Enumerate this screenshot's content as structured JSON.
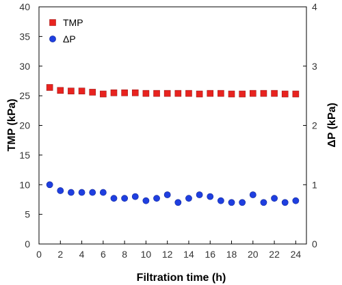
{
  "chart_data": {
    "type": "scatter",
    "xlabel": "Filtration time (h)",
    "ylabel_left": "TMP (kPa)",
    "ylabel_right": "ΔP (kPa)",
    "xlim": [
      0,
      25
    ],
    "ylim_left": [
      0,
      40
    ],
    "ylim_right": [
      0,
      4
    ],
    "x_ticks": [
      0,
      2,
      4,
      6,
      8,
      10,
      12,
      14,
      16,
      18,
      20,
      22,
      24
    ],
    "y_ticks_left": [
      0,
      5,
      10,
      15,
      20,
      25,
      30,
      35,
      40
    ],
    "y_ticks_right": [
      0,
      1,
      2,
      3,
      4
    ],
    "grid": false,
    "legend_position": "top-left",
    "series": [
      {
        "name": "TMP",
        "axis": "left",
        "marker": "square",
        "color": "#e8231f",
        "x": [
          1,
          2,
          3,
          4,
          5,
          6,
          7,
          8,
          9,
          10,
          11,
          12,
          13,
          14,
          15,
          16,
          17,
          18,
          19,
          20,
          21,
          22,
          23,
          24
        ],
        "y": [
          26.4,
          25.9,
          25.8,
          25.8,
          25.6,
          25.3,
          25.5,
          25.5,
          25.5,
          25.4,
          25.4,
          25.4,
          25.4,
          25.4,
          25.3,
          25.4,
          25.4,
          25.3,
          25.3,
          25.4,
          25.4,
          25.4,
          25.3,
          25.3
        ]
      },
      {
        "name": "ΔP",
        "axis": "right",
        "marker": "circle",
        "color": "#1f3fe0",
        "x": [
          1,
          2,
          3,
          4,
          5,
          6,
          7,
          8,
          9,
          10,
          11,
          12,
          13,
          14,
          15,
          16,
          17,
          18,
          19,
          20,
          21,
          22,
          23,
          24
        ],
        "y": [
          1.0,
          0.9,
          0.87,
          0.87,
          0.87,
          0.87,
          0.77,
          0.77,
          0.8,
          0.73,
          0.77,
          0.83,
          0.7,
          0.77,
          0.83,
          0.8,
          0.73,
          0.7,
          0.7,
          0.83,
          0.7,
          0.77,
          0.7,
          0.73
        ]
      }
    ]
  },
  "colors": {
    "tmp_marker": "#e8231f",
    "dp_marker": "#1f3fe0",
    "axis": "#000000"
  }
}
